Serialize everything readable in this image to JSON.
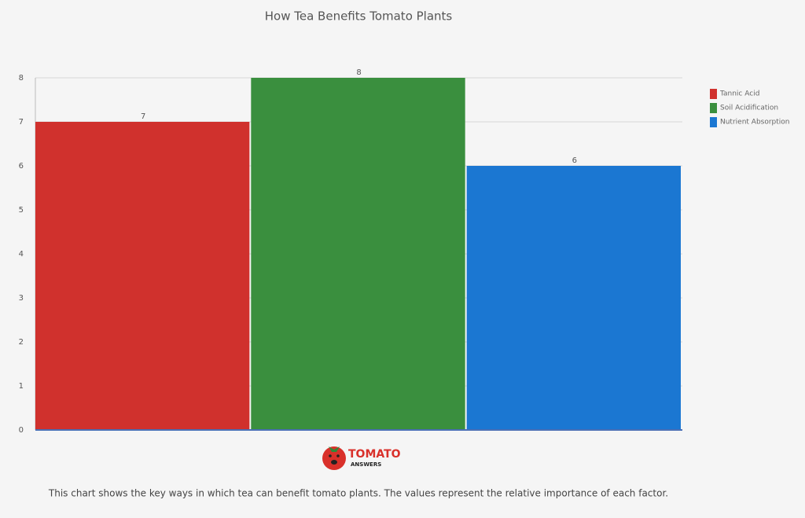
{
  "chart_data": {
    "type": "bar",
    "title": "How Tea Benefits Tomato Plants",
    "categories": [
      null
    ],
    "series": [
      {
        "name": "Tannic Acid",
        "color": "#d0312d",
        "values": [
          7
        ]
      },
      {
        "name": "Soil Acidification",
        "color": "#3a8f3e",
        "values": [
          8
        ]
      },
      {
        "name": "Nutrient Absorption",
        "color": "#1b77d2",
        "values": [
          6
        ]
      }
    ],
    "ylim": [
      0,
      8
    ],
    "yticks": [
      0,
      1,
      2,
      3,
      4,
      5,
      6,
      7,
      8
    ],
    "grid": true,
    "legend": "right",
    "caption": "This chart shows the key ways in which tea can benefit tomato plants. The values represent the relative importance of each factor."
  },
  "logo": {
    "name": "TOMATO",
    "tagline": "ANSWERS"
  }
}
